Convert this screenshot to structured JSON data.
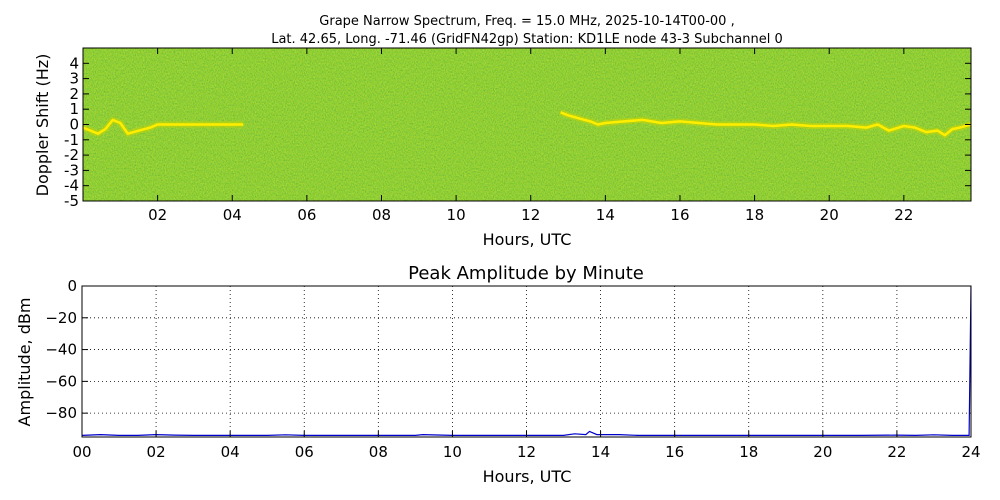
{
  "figure": {
    "title_line1": "Grape Narrow Spectrum, Freq. = 15.0 MHz, 2025-10-14T00-00 ,",
    "title_line2": "Lat.  42.65, Long. -71.46 (GridFN42gp) Station: KD1LE node 43-3 Subchannel 0"
  },
  "colors": {
    "spectrogram_background": "#5aa000",
    "signal_core": "#ffee00",
    "signal_edge": "#c8d400",
    "amplitude_line": "#0000cc"
  },
  "chart_data": [
    {
      "type": "heatmap",
      "title": "",
      "xlabel": "Hours, UTC",
      "ylabel": "Doppler Shift (Hz)",
      "xlim": [
        0,
        23.8
      ],
      "ylim": [
        -5,
        5
      ],
      "x_ticks": [
        "02",
        "04",
        "06",
        "08",
        "10",
        "12",
        "14",
        "16",
        "18",
        "20",
        "22"
      ],
      "x_tick_values": [
        2,
        4,
        6,
        8,
        10,
        12,
        14,
        16,
        18,
        20,
        22
      ],
      "y_ticks": [
        "4",
        "3",
        "2",
        "1",
        "0",
        "-1",
        "-2",
        "-3",
        "-4",
        "-5"
      ],
      "y_tick_values": [
        4,
        3,
        2,
        1,
        0,
        -1,
        -2,
        -3,
        -4,
        -5
      ],
      "grid": false,
      "trace": {
        "x": [
          0,
          0.2,
          0.4,
          0.6,
          0.8,
          1.0,
          1.2,
          1.5,
          1.8,
          2.0,
          2.3,
          2.6,
          3.0,
          3.3,
          3.6,
          4.0,
          4.3,
          12.8,
          13.0,
          13.3,
          13.6,
          13.8,
          14.0,
          14.5,
          15.0,
          15.5,
          16.0,
          16.5,
          17.0,
          17.5,
          18.0,
          18.5,
          19.0,
          19.5,
          20.0,
          20.5,
          21.0,
          21.3,
          21.6,
          22.0,
          22.3,
          22.6,
          22.9,
          23.1,
          23.3,
          23.5,
          23.8
        ],
        "y": [
          -0.2,
          -0.4,
          -0.6,
          -0.3,
          0.3,
          0.1,
          -0.6,
          -0.4,
          -0.2,
          0.0,
          0.0,
          0.0,
          0.0,
          0.0,
          0.0,
          0.0,
          0.0,
          0.8,
          0.6,
          0.4,
          0.2,
          0.0,
          0.1,
          0.2,
          0.3,
          0.1,
          0.2,
          0.1,
          0.0,
          0.0,
          0.0,
          -0.1,
          0.0,
          -0.1,
          -0.1,
          -0.1,
          -0.2,
          0.0,
          -0.4,
          -0.1,
          -0.2,
          -0.5,
          -0.4,
          -0.7,
          -0.3,
          -0.2,
          0.0
        ]
      },
      "notes": "Bright carrier trace near 0 Hz; absent roughly 04-13 UTC"
    },
    {
      "type": "line",
      "title": "Peak Amplitude by Minute",
      "xlabel": "Hours, UTC",
      "ylabel": "Amplitude, dBm",
      "xlim": [
        0,
        24
      ],
      "ylim": [
        -95,
        0
      ],
      "x_ticks": [
        "00",
        "02",
        "04",
        "06",
        "08",
        "10",
        "12",
        "14",
        "16",
        "18",
        "20",
        "22",
        "24"
      ],
      "x_tick_values": [
        0,
        2,
        4,
        6,
        8,
        10,
        12,
        14,
        16,
        18,
        20,
        22,
        24
      ],
      "y_ticks": [
        "0",
        "−20",
        "−40",
        "−60",
        "−80"
      ],
      "y_tick_values": [
        0,
        -20,
        -40,
        -60,
        -80
      ],
      "grid": true,
      "series": [
        {
          "x": [
            0,
            0.5,
            1.0,
            1.5,
            2.0,
            2.5,
            3.0,
            4.0,
            5.0,
            5.5,
            6.0,
            7.0,
            8.0,
            9.0,
            9.2,
            10.0,
            11.0,
            12.0,
            13.0,
            13.3,
            13.6,
            13.7,
            13.9,
            14.5,
            15.0,
            16.0,
            17.0,
            18.0,
            19.0,
            20.0,
            21.0,
            22.0,
            22.5,
            23.0,
            23.5,
            23.95,
            24.0
          ],
          "y": [
            -94,
            -93.5,
            -94,
            -94,
            -93.5,
            -93.8,
            -94,
            -94,
            -94,
            -93.6,
            -94,
            -94,
            -94,
            -94,
            -93.5,
            -94,
            -94,
            -94,
            -94,
            -93,
            -93.5,
            -91.5,
            -93.5,
            -93.5,
            -94,
            -94,
            -94,
            -94,
            -94,
            -94,
            -94,
            -93.8,
            -94,
            -93.6,
            -94,
            -94,
            0
          ]
        }
      ]
    }
  ]
}
